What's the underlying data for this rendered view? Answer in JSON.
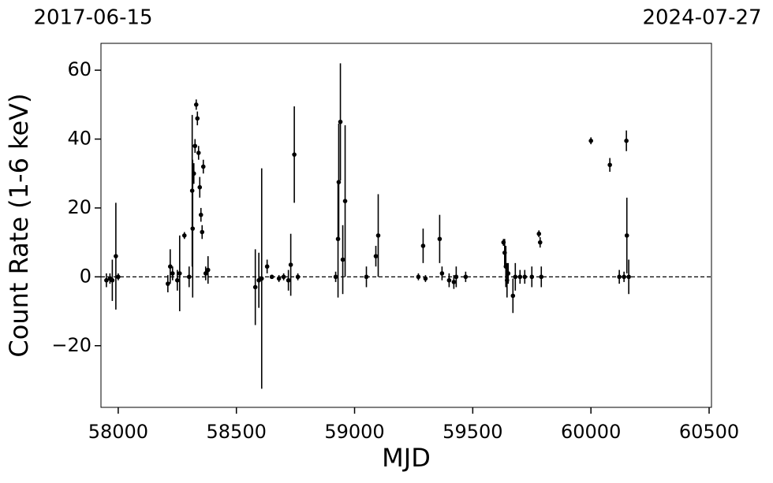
{
  "chart_data": {
    "type": "errorbar",
    "xlabel": "MJD",
    "ylabel": "Count Rate (1-6 keV)",
    "top_labels": [
      "2017-06-15",
      "2024-07-27"
    ],
    "xlim": [
      57927,
      60510
    ],
    "ylim": [
      -37.9,
      67.8
    ],
    "xticks": [
      58000,
      58500,
      59000,
      59500,
      60000,
      60500
    ],
    "yticks": [
      {
        "value": -20,
        "label": "−20"
      },
      0,
      20,
      40,
      60
    ],
    "hline": 0,
    "color": "#000000",
    "x": [
      57950,
      57965,
      57975,
      57990,
      58000,
      58210,
      58220,
      58230,
      58250,
      58260,
      58280,
      58300,
      58313,
      58315,
      58320,
      58325,
      58330,
      58335,
      58340,
      58345,
      58350,
      58355,
      58360,
      58370,
      58380,
      58580,
      58595,
      58607,
      58630,
      58650,
      58680,
      58700,
      58720,
      58730,
      58745,
      58760,
      58920,
      58930,
      58933,
      58940,
      58950,
      58960,
      59050,
      59090,
      59100,
      59270,
      59290,
      59300,
      59360,
      59370,
      59400,
      59420,
      59430,
      59470,
      59630,
      59635,
      59640,
      59645,
      59650,
      59670,
      59680,
      59700,
      59720,
      59750,
      59780,
      59785,
      59790,
      60000,
      60080,
      60120,
      60140,
      60150,
      60152,
      60160
    ],
    "values": [
      -1,
      -0.5,
      -1,
      6,
      0,
      -2,
      3,
      1,
      -1,
      1,
      12,
      0,
      25,
      14,
      30,
      38,
      50,
      46,
      36,
      26,
      18,
      13,
      32,
      1,
      2,
      -3,
      -1,
      -0.5,
      3,
      0,
      -0.5,
      0,
      -1,
      3.5,
      35.5,
      0,
      0,
      11,
      27.5,
      45,
      5,
      22,
      0,
      6,
      12,
      0,
      9,
      -0.5,
      11,
      1,
      -1,
      -1.5,
      0,
      0,
      10,
      7,
      3,
      -1,
      1,
      -5.5,
      0,
      0,
      0,
      0,
      12.5,
      10,
      0,
      39.5,
      32.5,
      0,
      0,
      39.5,
      12,
      0
    ],
    "errors": [
      2,
      1.5,
      6,
      15.5,
      1,
      2.5,
      5,
      2,
      3,
      11,
      1,
      3,
      22,
      20,
      3,
      2,
      1.5,
      2,
      2,
      3,
      2,
      2,
      2,
      2,
      4,
      11,
      8,
      32,
      2,
      0.5,
      1,
      1,
      3,
      9,
      14,
      1,
      1.5,
      17,
      17,
      17,
      10,
      22,
      3,
      3,
      12,
      1,
      5,
      1,
      7,
      2,
      2,
      2,
      3,
      1.5,
      1,
      4,
      6,
      5,
      3,
      5,
      4,
      2,
      2,
      3,
      1,
      1.5,
      3,
      1,
      2,
      2,
      1.5,
      3,
      11,
      5
    ]
  }
}
